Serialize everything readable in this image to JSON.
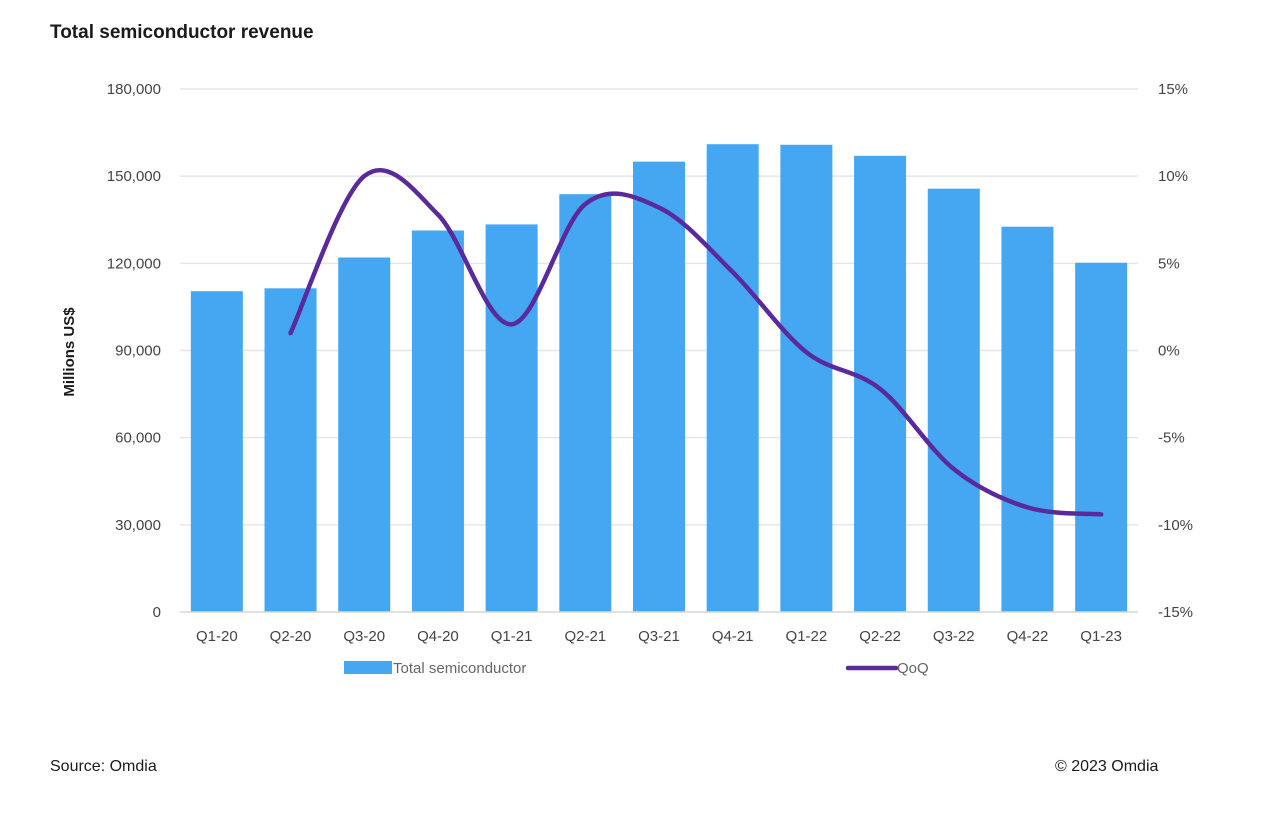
{
  "title": "Total semiconductor revenue",
  "footer": {
    "source": "Source: Omdia",
    "copyright": "© 2023 Omdia"
  },
  "colors": {
    "bar": "#45a6f2",
    "line": "#5a2a9c",
    "grid": "#e6e6e6"
  },
  "chart_data": {
    "type": "bar",
    "title": "Total semiconductor revenue",
    "xlabel": "",
    "ylabel": "Millions US$",
    "y2label": "",
    "ylim": [
      0,
      180000
    ],
    "y2lim": [
      -15,
      15
    ],
    "grid": true,
    "legend_position": "bottom",
    "categories": [
      "Q1-20",
      "Q2-20",
      "Q3-20",
      "Q4-20",
      "Q1-21",
      "Q2-21",
      "Q3-21",
      "Q4-21",
      "Q1-22",
      "Q2-22",
      "Q3-22",
      "Q4-22",
      "Q1-23"
    ],
    "left_ticks": [
      "0",
      "30,000",
      "60,000",
      "90,000",
      "120,000",
      "150,000",
      "180,000"
    ],
    "right_ticks": [
      "-15%",
      "-10%",
      "-5%",
      "0%",
      "5%",
      "10%",
      "15%"
    ],
    "series": [
      {
        "name": "Total semiconductor",
        "type": "bar",
        "axis": "left",
        "values": [
          110400,
          111400,
          122000,
          131300,
          133400,
          143800,
          155000,
          161000,
          160800,
          157000,
          145700,
          132600,
          120200
        ]
      },
      {
        "name": "QoQ",
        "type": "line",
        "axis": "right",
        "unit": "%",
        "values": [
          null,
          1.0,
          10.0,
          7.8,
          1.5,
          8.4,
          8.2,
          4.5,
          -0.1,
          -2.2,
          -6.8,
          -9.0,
          -9.4
        ]
      }
    ]
  }
}
